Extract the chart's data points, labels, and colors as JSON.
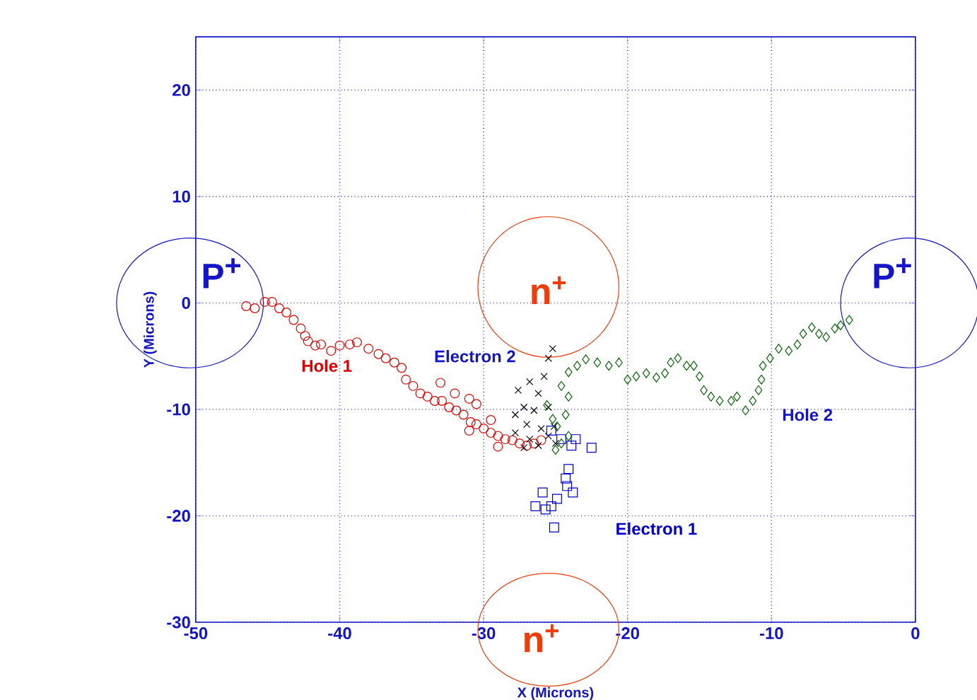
{
  "chart_data": {
    "type": "scatter",
    "xlabel": "X (Microns)",
    "ylabel": "Y (Microns)",
    "xlim": [
      -50,
      0
    ],
    "ylim": [
      -30,
      25
    ],
    "xticks": [
      -50,
      -40,
      -30,
      -20,
      -10,
      0
    ],
    "yticks": [
      -30,
      -20,
      -10,
      0,
      10,
      20
    ],
    "grid": true,
    "legend": false,
    "annotations": [
      "P$^{+}$",
      "P$^{+}$",
      "n$^{+}$",
      "n$^{+}$"
    ],
    "series": [
      {
        "name": "Hole 1",
        "color": "#e00000",
        "marker": "circle",
        "x": [
          -46.5,
          -45.9,
          -45.2,
          -44.7,
          -44.2,
          -43.7,
          -43.2,
          -42.7,
          -42.4,
          -42.2,
          -41.7,
          -41.3,
          -40.6,
          -40.0,
          -39.3,
          -38.8,
          -38.0,
          -37.3,
          -36.8,
          -36.2,
          -35.7,
          -35.4,
          -34.9,
          -34.4,
          -33.9,
          -33.4,
          -32.9,
          -32.4,
          -31.9,
          -31.4,
          -30.9,
          -30.5,
          -30.0,
          -29.5,
          -29.0,
          -28.5,
          -28.0,
          -27.5,
          -27.0,
          -26.5,
          -26.0,
          -33.0,
          -32.0,
          -31.0,
          -30.5,
          -29.5,
          -31.0,
          -29.0
        ],
        "values": [
          -0.3,
          -0.5,
          0.1,
          0.1,
          -0.5,
          -0.9,
          -1.6,
          -2.4,
          -3.1,
          -3.6,
          -4.0,
          -3.9,
          -4.5,
          -4.0,
          -3.9,
          -3.7,
          -4.3,
          -4.8,
          -5.2,
          -5.6,
          -6.1,
          -7.2,
          -7.8,
          -8.5,
          -8.8,
          -9.2,
          -9.2,
          -9.8,
          -10.1,
          -10.5,
          -11.2,
          -11.4,
          -11.8,
          -12.2,
          -12.5,
          -12.8,
          -12.9,
          -13.2,
          -13.4,
          -13.2,
          -12.9,
          -7.5,
          -8.5,
          -9.0,
          -9.5,
          -11.0,
          -12.0,
          -13.5
        ]
      },
      {
        "name": "Electron 2",
        "color": "#000000",
        "marker": "cross",
        "x": [
          -25.2,
          -25.5,
          -27.6,
          -26.8,
          -26.2,
          -25.8,
          -27.8,
          -27.2,
          -26.5,
          -25.5,
          -27.0,
          -26.0,
          -27.8,
          -26.8,
          -25.5,
          -25.1,
          -26.2,
          -27.2,
          -25.0
        ],
        "values": [
          -4.3,
          -5.2,
          -8.2,
          -7.4,
          -8.5,
          -6.9,
          -10.5,
          -9.8,
          -10.1,
          -9.8,
          -11.4,
          -11.8,
          -12.2,
          -12.8,
          -12.5,
          -11.6,
          -13.4,
          -13.6,
          -13.2
        ]
      },
      {
        "name": "Electron 1",
        "color": "#0000cc",
        "marker": "square",
        "x": [
          -25.3,
          -24.6,
          -23.9,
          -22.5,
          -23.6,
          -24.1,
          -24.2,
          -23.8,
          -25.9,
          -24.9,
          -26.4,
          -25.7,
          -25.3,
          -25.1,
          -24.3
        ],
        "values": [
          -12.0,
          -12.8,
          -13.4,
          -13.6,
          -12.8,
          -15.6,
          -17.2,
          -17.8,
          -17.8,
          -18.4,
          -19.1,
          -19.4,
          -19.1,
          -21.1,
          -16.5
        ]
      },
      {
        "name": "Hole 2",
        "color": "#006600",
        "marker": "diamond",
        "x": [
          -25.0,
          -24.6,
          -24.1,
          -24.9,
          -24.3,
          -25.6,
          -25.2,
          -24.1,
          -24.6,
          -24.1,
          -23.5,
          -22.9,
          -22.1,
          -21.3,
          -20.6,
          -20.0,
          -19.4,
          -18.7,
          -18.0,
          -17.4,
          -17.0,
          -16.5,
          -15.9,
          -15.4,
          -15.0,
          -14.7,
          -14.2,
          -13.6,
          -12.8,
          -12.4,
          -11.8,
          -11.3,
          -10.9,
          -10.7,
          -10.6,
          -10.1,
          -9.5,
          -8.8,
          -8.2,
          -7.8,
          -7.2,
          -6.7,
          -6.2,
          -5.6,
          -5.2,
          -4.6
        ],
        "values": [
          -13.8,
          -13.2,
          -12.5,
          -11.6,
          -10.5,
          -9.6,
          -10.9,
          -8.8,
          -7.8,
          -6.5,
          -5.9,
          -5.3,
          -5.6,
          -5.9,
          -5.6,
          -7.2,
          -6.9,
          -6.6,
          -7.0,
          -6.6,
          -5.6,
          -5.2,
          -5.9,
          -5.9,
          -6.9,
          -8.2,
          -8.8,
          -9.2,
          -9.2,
          -8.8,
          -10.1,
          -9.2,
          -8.2,
          -7.2,
          -5.9,
          -5.2,
          -4.3,
          -4.5,
          -3.9,
          -2.9,
          -2.3,
          -2.9,
          -3.2,
          -2.4,
          -2.1,
          -1.6
        ]
      }
    ]
  }
}
